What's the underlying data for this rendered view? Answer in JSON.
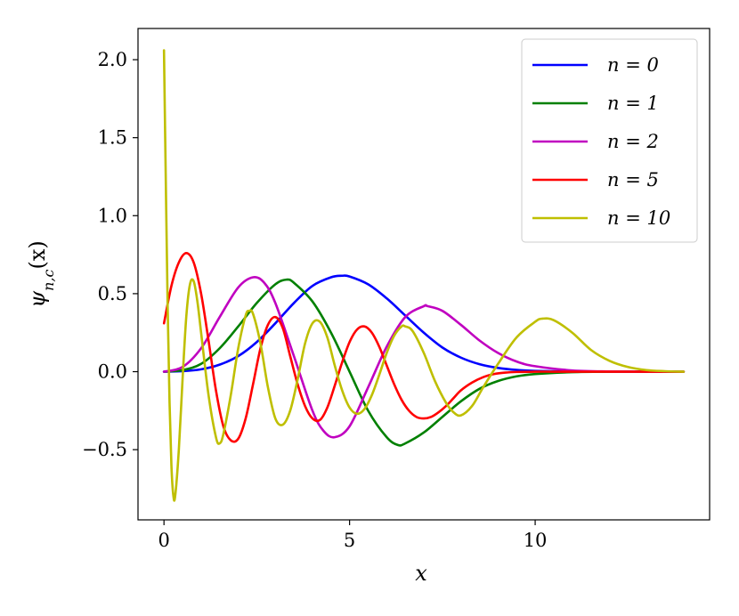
{
  "chart_data": {
    "type": "line",
    "xlabel": "x",
    "ylabel": "ψn,c(x)",
    "ylabel_parts": {
      "base": "ψ",
      "sub": "n,c",
      "tail": "(x)"
    },
    "xlim": [
      -0.7,
      14.7
    ],
    "ylim": [
      -0.95,
      2.2
    ],
    "xticks": [
      0,
      5,
      10
    ],
    "xtick_labels": [
      "0",
      "5",
      "10"
    ],
    "yticks": [
      -0.5,
      0.0,
      0.5,
      1.0,
      1.5,
      2.0
    ],
    "ytick_labels": [
      "−0.5",
      "0.0",
      "0.5",
      "1.0",
      "1.5",
      "2.0"
    ],
    "grid": false,
    "legend_position": "top-right",
    "series": [
      {
        "name": "n = 0",
        "color": "#0000ff",
        "x": [
          0,
          0.5,
          1.0,
          1.5,
          2.0,
          2.5,
          3.0,
          3.5,
          4.0,
          4.5,
          4.8,
          5.0,
          5.5,
          6.0,
          6.5,
          7.0,
          7.5,
          8.0,
          8.5,
          9.0,
          9.5,
          10.0,
          11.0,
          12.0,
          13.0,
          14.0
        ],
        "y": [
          0.0,
          0.003,
          0.015,
          0.045,
          0.1,
          0.19,
          0.31,
          0.44,
          0.55,
          0.605,
          0.615,
          0.61,
          0.56,
          0.47,
          0.36,
          0.25,
          0.155,
          0.09,
          0.048,
          0.024,
          0.011,
          0.005,
          0.001,
          0.0,
          0.0,
          0.0
        ]
      },
      {
        "name": "n = 1",
        "color": "#008000",
        "x": [
          0,
          0.5,
          1.0,
          1.5,
          2.0,
          2.5,
          3.0,
          3.3,
          3.5,
          4.0,
          4.5,
          5.0,
          5.5,
          6.0,
          6.3,
          6.5,
          7.0,
          7.5,
          8.0,
          8.5,
          9.0,
          9.5,
          10.0,
          11.0,
          12.0,
          13.0,
          14.0
        ],
        "y": [
          0.0,
          0.01,
          0.05,
          0.15,
          0.29,
          0.44,
          0.56,
          0.59,
          0.57,
          0.45,
          0.25,
          0.0,
          -0.25,
          -0.42,
          -0.47,
          -0.46,
          -0.39,
          -0.29,
          -0.19,
          -0.11,
          -0.06,
          -0.03,
          -0.015,
          -0.003,
          0.0,
          0.0,
          0.0
        ]
      },
      {
        "name": "n = 2",
        "color": "#c000c0",
        "x": [
          0,
          0.5,
          1.0,
          1.5,
          2.0,
          2.4,
          2.7,
          3.0,
          3.5,
          4.0,
          4.3,
          4.6,
          5.0,
          5.5,
          6.0,
          6.5,
          7.0,
          7.1,
          7.5,
          8.0,
          8.5,
          9.0,
          9.5,
          10.0,
          11.0,
          12.0,
          13.0,
          14.0
        ],
        "y": [
          0.0,
          0.03,
          0.15,
          0.35,
          0.54,
          0.605,
          0.57,
          0.44,
          0.1,
          -0.25,
          -0.38,
          -0.42,
          -0.35,
          -0.1,
          0.16,
          0.35,
          0.42,
          0.42,
          0.39,
          0.3,
          0.2,
          0.12,
          0.065,
          0.035,
          0.008,
          0.001,
          0.0,
          0.0
        ]
      },
      {
        "name": "n = 5",
        "color": "#ff0000",
        "x": [
          0,
          0.2,
          0.4,
          0.6,
          0.8,
          1.0,
          1.2,
          1.4,
          1.6,
          1.8,
          2.0,
          2.2,
          2.4,
          2.6,
          2.8,
          3.0,
          3.2,
          3.4,
          3.6,
          3.8,
          4.0,
          4.2,
          4.4,
          4.6,
          4.8,
          5.0,
          5.2,
          5.4,
          5.6,
          5.8,
          6.0,
          6.2,
          6.4,
          6.6,
          6.8,
          7.0,
          7.2,
          7.4,
          7.6,
          7.8,
          8.0,
          8.3,
          8.6,
          8.9,
          9.2,
          9.5,
          10.0,
          10.5,
          11.0,
          12.0,
          13.0,
          14.0
        ],
        "y": [
          0.31,
          0.55,
          0.7,
          0.76,
          0.7,
          0.5,
          0.2,
          -0.12,
          -0.35,
          -0.44,
          -0.43,
          -0.3,
          -0.08,
          0.15,
          0.3,
          0.35,
          0.28,
          0.1,
          -0.08,
          -0.22,
          -0.3,
          -0.31,
          -0.23,
          -0.09,
          0.06,
          0.19,
          0.27,
          0.29,
          0.25,
          0.16,
          0.04,
          -0.08,
          -0.18,
          -0.25,
          -0.29,
          -0.3,
          -0.29,
          -0.26,
          -0.22,
          -0.17,
          -0.12,
          -0.07,
          -0.035,
          -0.015,
          -0.006,
          -0.002,
          0.0,
          0.0,
          0.0,
          0.0,
          0.0,
          0.0
        ]
      },
      {
        "name": "n = 10",
        "color": "#bfbf00",
        "x": [
          0,
          0.05,
          0.1,
          0.15,
          0.2,
          0.25,
          0.3,
          0.4,
          0.5,
          0.6,
          0.7,
          0.8,
          0.9,
          1.0,
          1.2,
          1.4,
          1.5,
          1.6,
          1.8,
          2.0,
          2.2,
          2.3,
          2.4,
          2.6,
          2.8,
          3.0,
          3.2,
          3.4,
          3.6,
          3.8,
          4.0,
          4.2,
          4.4,
          4.6,
          4.8,
          5.0,
          5.2,
          5.4,
          5.6,
          5.8,
          6.0,
          6.2,
          6.4,
          6.5,
          6.7,
          7.0,
          7.3,
          7.6,
          7.8,
          8.0,
          8.3,
          8.6,
          9.0,
          9.5,
          10.0,
          10.2,
          10.5,
          11.0,
          11.5,
          12.0,
          12.5,
          13.0,
          13.5,
          14.0
        ],
        "y": [
          2.06,
          1.2,
          0.4,
          -0.2,
          -0.6,
          -0.79,
          -0.8,
          -0.5,
          -0.05,
          0.35,
          0.56,
          0.58,
          0.45,
          0.25,
          -0.15,
          -0.42,
          -0.46,
          -0.4,
          -0.15,
          0.15,
          0.36,
          0.39,
          0.37,
          0.18,
          -0.1,
          -0.3,
          -0.34,
          -0.25,
          -0.05,
          0.18,
          0.31,
          0.32,
          0.22,
          0.04,
          -0.12,
          -0.23,
          -0.27,
          -0.24,
          -0.15,
          -0.02,
          0.12,
          0.23,
          0.29,
          0.29,
          0.26,
          0.12,
          -0.06,
          -0.2,
          -0.26,
          -0.28,
          -0.22,
          -0.1,
          0.05,
          0.22,
          0.32,
          0.34,
          0.33,
          0.25,
          0.14,
          0.07,
          0.03,
          0.01,
          0.003,
          0.0
        ]
      }
    ]
  }
}
